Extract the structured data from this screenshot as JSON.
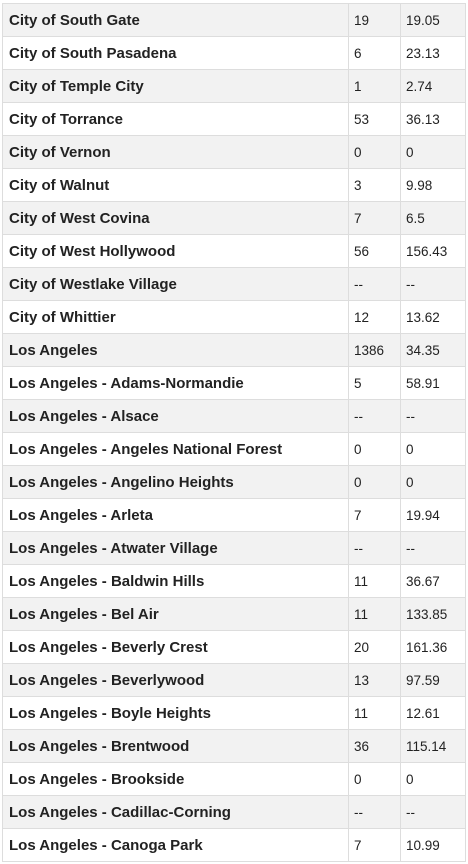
{
  "table": {
    "rows": [
      {
        "name": "City of South Gate",
        "count": "19",
        "rate": "19.05"
      },
      {
        "name": "City of South Pasadena",
        "count": "6",
        "rate": "23.13"
      },
      {
        "name": "City of Temple City",
        "count": "1",
        "rate": "2.74"
      },
      {
        "name": "City of Torrance",
        "count": "53",
        "rate": "36.13"
      },
      {
        "name": "City of Vernon",
        "count": "0",
        "rate": "0"
      },
      {
        "name": "City of Walnut",
        "count": "3",
        "rate": "9.98"
      },
      {
        "name": "City of West Covina",
        "count": "7",
        "rate": "6.5"
      },
      {
        "name": "City of West Hollywood",
        "count": "56",
        "rate": "156.43"
      },
      {
        "name": "City of Westlake Village",
        "count": "--",
        "rate": "--"
      },
      {
        "name": "City of Whittier",
        "count": "12",
        "rate": "13.62"
      },
      {
        "name": "Los Angeles",
        "count": "1386",
        "rate": "34.35"
      },
      {
        "name": "Los Angeles - Adams-Normandie",
        "count": "5",
        "rate": "58.91"
      },
      {
        "name": "Los Angeles - Alsace",
        "count": "--",
        "rate": "--"
      },
      {
        "name": "Los Angeles - Angeles National Forest",
        "count": "0",
        "rate": "0"
      },
      {
        "name": "Los Angeles - Angelino Heights",
        "count": "0",
        "rate": "0"
      },
      {
        "name": "Los Angeles - Arleta",
        "count": "7",
        "rate": "19.94"
      },
      {
        "name": "Los Angeles - Atwater Village",
        "count": "--",
        "rate": "--"
      },
      {
        "name": "Los Angeles - Baldwin Hills",
        "count": "11",
        "rate": "36.67"
      },
      {
        "name": "Los Angeles - Bel Air",
        "count": "11",
        "rate": "133.85"
      },
      {
        "name": "Los Angeles - Beverly Crest",
        "count": "20",
        "rate": "161.36"
      },
      {
        "name": "Los Angeles - Beverlywood",
        "count": "13",
        "rate": "97.59"
      },
      {
        "name": "Los Angeles - Boyle Heights",
        "count": "11",
        "rate": "12.61"
      },
      {
        "name": "Los Angeles - Brentwood",
        "count": "36",
        "rate": "115.14"
      },
      {
        "name": "Los Angeles - Brookside",
        "count": "0",
        "rate": "0"
      },
      {
        "name": "Los Angeles - Cadillac-Corning",
        "count": "--",
        "rate": "--"
      },
      {
        "name": "Los Angeles - Canoga Park",
        "count": "7",
        "rate": "10.99"
      }
    ]
  }
}
